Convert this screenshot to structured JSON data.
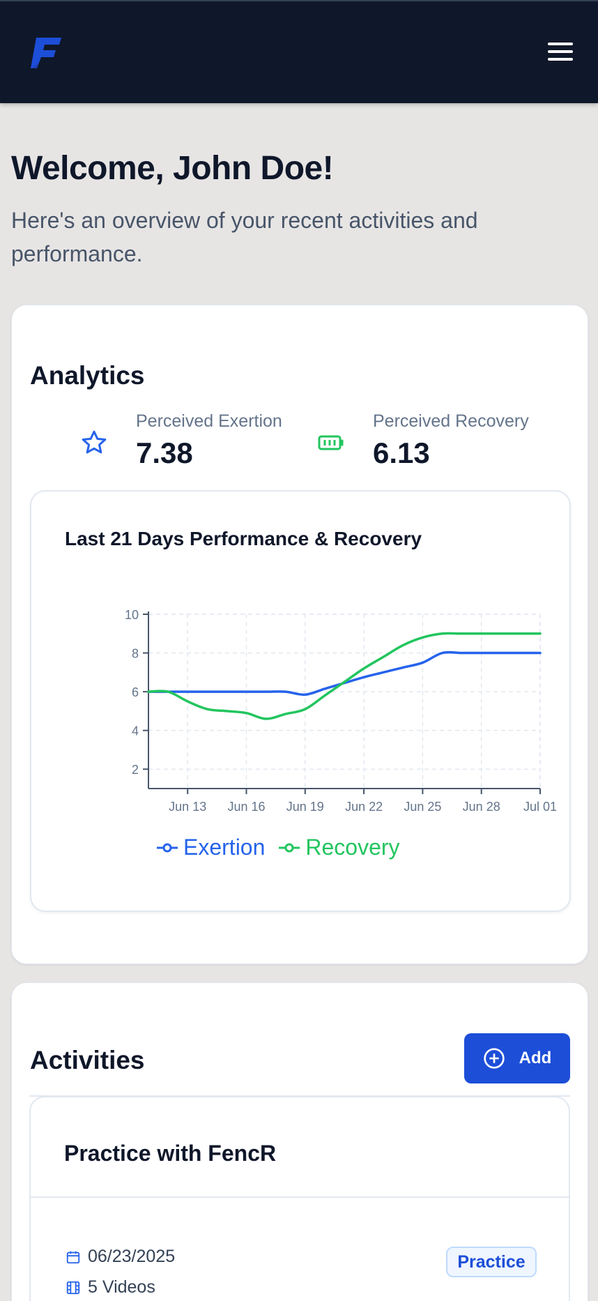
{
  "header": {
    "logo_alt": "F",
    "menu_icon": "hamburger-menu-icon"
  },
  "welcome": {
    "title": "Welcome, John Doe!",
    "subtitle": "Here's an overview of your recent activities and performance."
  },
  "analytics": {
    "heading": "Analytics",
    "exertion": {
      "label": "Perceived Exertion",
      "value": "7.38",
      "icon": "star-icon"
    },
    "recovery": {
      "label": "Perceived Recovery",
      "value": "6.13",
      "icon": "battery-icon"
    }
  },
  "colors": {
    "exertion": "#2563eb",
    "recovery": "#22c55e",
    "accent": "#1d4ed8",
    "nav": "#0f172a"
  },
  "chart_data": {
    "type": "line",
    "title": "Last 21 Days Performance & Recovery",
    "xlabel": "",
    "ylabel": "",
    "x_ticks": [
      "Jun 13",
      "Jun 16",
      "Jun 19",
      "Jun 22",
      "Jun 25",
      "Jun 28",
      "Jul 01"
    ],
    "y_ticks": [
      2,
      4,
      6,
      8,
      10
    ],
    "ylim": [
      1,
      10
    ],
    "x": [
      "Jun 11",
      "Jun 12",
      "Jun 13",
      "Jun 14",
      "Jun 15",
      "Jun 16",
      "Jun 17",
      "Jun 18",
      "Jun 19",
      "Jun 20",
      "Jun 21",
      "Jun 22",
      "Jun 23",
      "Jun 24",
      "Jun 25",
      "Jun 26",
      "Jun 27",
      "Jun 28",
      "Jun 29",
      "Jun 30",
      "Jul 01"
    ],
    "series": [
      {
        "name": "Exertion",
        "values": [
          6,
          6,
          6,
          6,
          6,
          6,
          6,
          6,
          5.85,
          6.15,
          6.45,
          6.75,
          7.0,
          7.25,
          7.5,
          8.0,
          8.0,
          8.0,
          8.0,
          8.0,
          8.0
        ]
      },
      {
        "name": "Recovery",
        "values": [
          6,
          6,
          5.5,
          5.1,
          5.0,
          4.9,
          4.6,
          4.85,
          5.1,
          5.8,
          6.5,
          7.2,
          7.8,
          8.4,
          8.8,
          9.0,
          9.0,
          9.0,
          9.0,
          9.0,
          9.0
        ]
      }
    ],
    "grid": true,
    "legend": "bottom"
  },
  "activities": {
    "heading": "Activities",
    "add_label": "Add",
    "items": [
      {
        "title": "Practice with FencR",
        "date": "06/23/2025",
        "videos": "5 Videos",
        "tag": "Practice"
      }
    ]
  }
}
